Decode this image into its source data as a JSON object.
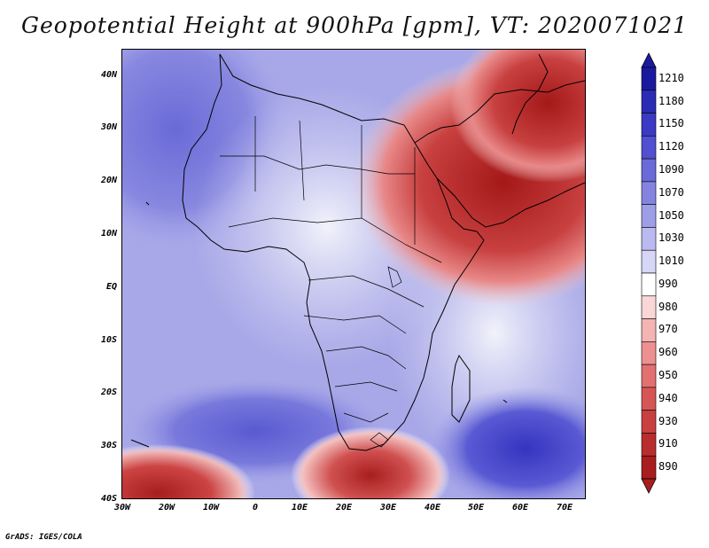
{
  "title": "Geopotential Height at 900hPa [gpm], VT: 2020071021",
  "credit": "GrADS: IGES/COLA",
  "map": {
    "lat_labels": [
      "40N",
      "30N",
      "20N",
      "10N",
      "EQ",
      "10S",
      "20S",
      "30S",
      "40S"
    ],
    "lon_labels": [
      "30W",
      "20W",
      "10W",
      "0",
      "10E",
      "20E",
      "30E",
      "40E",
      "50E",
      "60E",
      "70E"
    ],
    "lat_range": [
      -40,
      45
    ],
    "lon_range": [
      -30,
      75
    ]
  },
  "colorbar": {
    "labels": [
      "1210",
      "1180",
      "1150",
      "1120",
      "1090",
      "1070",
      "1050",
      "1030",
      "1010",
      "990",
      "980",
      "970",
      "960",
      "950",
      "940",
      "930",
      "910",
      "890"
    ],
    "colors": [
      "#1a1a9e",
      "#2b2bb3",
      "#3a3ac4",
      "#5050d0",
      "#6a6ad8",
      "#8484e0",
      "#9e9ee8",
      "#babaf0",
      "#d6d6f6",
      "#ffffff",
      "#fad6d6",
      "#f4b4b4",
      "#ec9090",
      "#e27070",
      "#d65656",
      "#c84040",
      "#b82e2e",
      "#a81e1e"
    ]
  }
}
